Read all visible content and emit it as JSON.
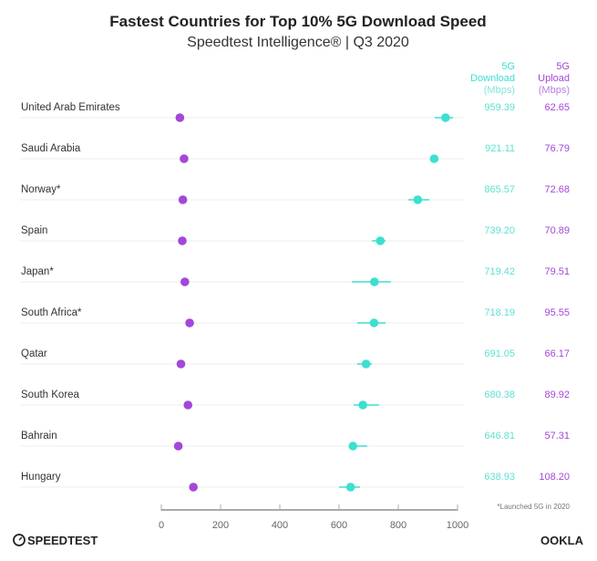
{
  "chart_data": {
    "type": "scatter",
    "title": "Fastest Countries for Top 10% 5G Download Speed",
    "subtitle": "Speedtest Intelligence® | Q3 2020",
    "xlim": [
      0,
      1000
    ],
    "xticks": [
      "0",
      "200",
      "400",
      "600",
      "800",
      "1000"
    ],
    "column_headers": {
      "download": [
        "5G",
        "Download",
        "(Mbps)"
      ],
      "upload": [
        "5G",
        "Upload",
        "(Mbps)"
      ]
    },
    "categories": [
      "United Arab Emirates",
      "Saudi Arabia",
      "Norway*",
      "Spain",
      "Japan*",
      "South Africa*",
      "Qatar",
      "South Korea",
      "Bahrain",
      "Hungary"
    ],
    "series": [
      {
        "name": "5G Download",
        "color": "#3ddfcf",
        "values": [
          959.39,
          921.11,
          865.57,
          739.2,
          719.42,
          718.19,
          691.05,
          680.38,
          646.81,
          638.93
        ],
        "labels": [
          "959.39",
          "921.11",
          "865.57",
          "739.20",
          "719.42",
          "718.19",
          "691.05",
          "680.38",
          "646.81",
          "638.93"
        ],
        "ci_low": [
          923,
          921,
          834,
          711,
          643,
          661,
          661,
          649,
          643,
          600
        ],
        "ci_high": [
          985,
          921,
          905,
          757,
          775,
          757,
          711,
          735,
          695,
          671
        ]
      },
      {
        "name": "5G Upload",
        "color": "#a347d9",
        "values": [
          62.65,
          76.79,
          72.68,
          70.89,
          79.51,
          95.55,
          66.17,
          89.92,
          57.31,
          108.2
        ],
        "labels": [
          "62.65",
          "76.79",
          "72.68",
          "70.89",
          "79.51",
          "95.55",
          "66.17",
          "89.92",
          "57.31",
          "108.20"
        ]
      }
    ],
    "footnote": "*Launched 5G in 2020",
    "grid": false
  },
  "branding": {
    "left_logo": "SPEEDTEST",
    "right_logo": "OOKLA"
  }
}
